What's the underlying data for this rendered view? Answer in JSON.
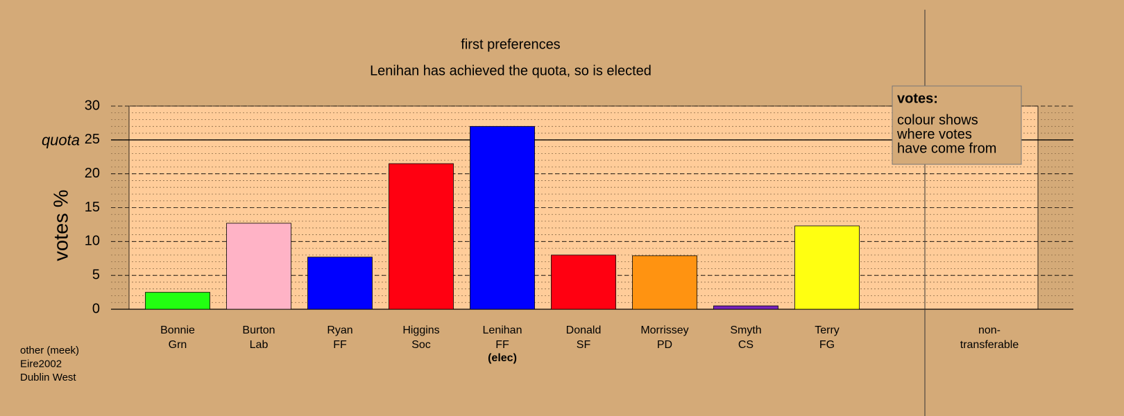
{
  "chart_data": {
    "type": "bar",
    "title": "first preferences",
    "subtitle": "Lenihan has achieved the quota, so is elected",
    "y_label": "votes %",
    "categories": [
      "Bonnie",
      "Burton",
      "Ryan",
      "Higgins",
      "Lenihan",
      "Donald",
      "Morrissey",
      "Smyth",
      "Terry"
    ],
    "parties": [
      "Grn",
      "Lab",
      "FF",
      "Soc",
      "FF",
      "SF",
      "PD",
      "CS",
      "FG"
    ],
    "values": [
      2.5,
      12.7,
      7.7,
      21.5,
      27,
      8,
      7.9,
      0.5,
      12.3
    ],
    "colors": [
      "#22ff11",
      "#ffb3c6",
      "#0000ff",
      "#ff0011",
      "#0000ff",
      "#ff0011",
      "#ff9311",
      "#7722bb",
      "#ffff11"
    ],
    "elected": {
      "index": 4,
      "label": "(elec)"
    },
    "nontransferable_label": [
      "non-",
      "transferable"
    ],
    "quota": {
      "value": 25,
      "label": "quota"
    },
    "ylim": [
      0,
      30
    ],
    "yticks": [
      0,
      5,
      10,
      15,
      20,
      25,
      30
    ],
    "grid": true,
    "minor_grid": true,
    "legend": {
      "title": "votes:",
      "lines": [
        "colour shows",
        "where votes",
        "have come from"
      ]
    },
    "notes": [
      "other (meek)",
      "Eire2002",
      "Dublin West"
    ]
  }
}
